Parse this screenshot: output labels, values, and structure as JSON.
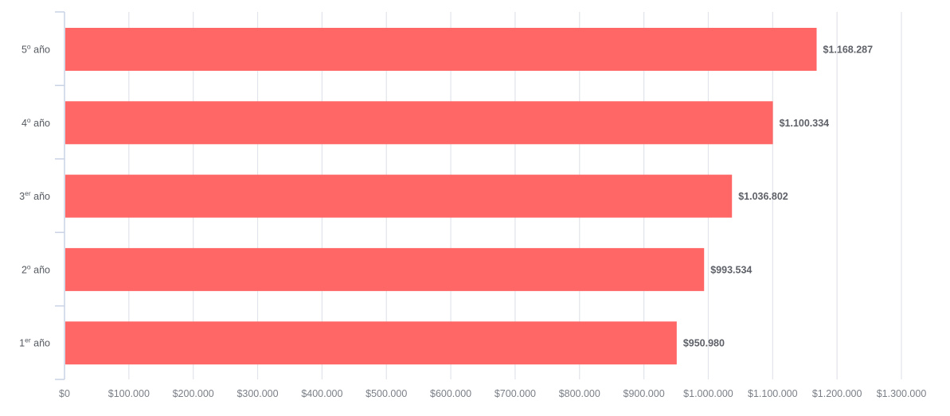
{
  "chart_data": {
    "type": "bar",
    "orientation": "horizontal",
    "categories": [
      {
        "base": "5",
        "sup": "o",
        "rest": " año"
      },
      {
        "base": "4",
        "sup": "o",
        "rest": " año"
      },
      {
        "base": "3",
        "sup": "er",
        "rest": " año"
      },
      {
        "base": "2",
        "sup": "o",
        "rest": " año"
      },
      {
        "base": "1",
        "sup": "er",
        "rest": " año"
      }
    ],
    "category_labels": [
      "5º año",
      "4º año",
      "3er año",
      "2º año",
      "1er año"
    ],
    "values": [
      1168287,
      1100334,
      1036802,
      993534,
      950980
    ],
    "data_labels": [
      "$1.168.287",
      "$1.100.334",
      "$1.036.802",
      "$993.534",
      "$950.980"
    ],
    "x_ticks": [
      "$0",
      "$100.000",
      "$200.000",
      "$300.000",
      "$400.000",
      "$500.000",
      "$600.000",
      "$700.000",
      "$800.000",
      "$900.000",
      "$1.000.000",
      "$1.100.000",
      "$1.200.000",
      "$1.300.000"
    ],
    "xlim": [
      0,
      1300000
    ],
    "grid": true,
    "colors": {
      "bar": "#ff6666",
      "grid": "#e1e4ea",
      "axis": "#c9d3e6"
    }
  }
}
